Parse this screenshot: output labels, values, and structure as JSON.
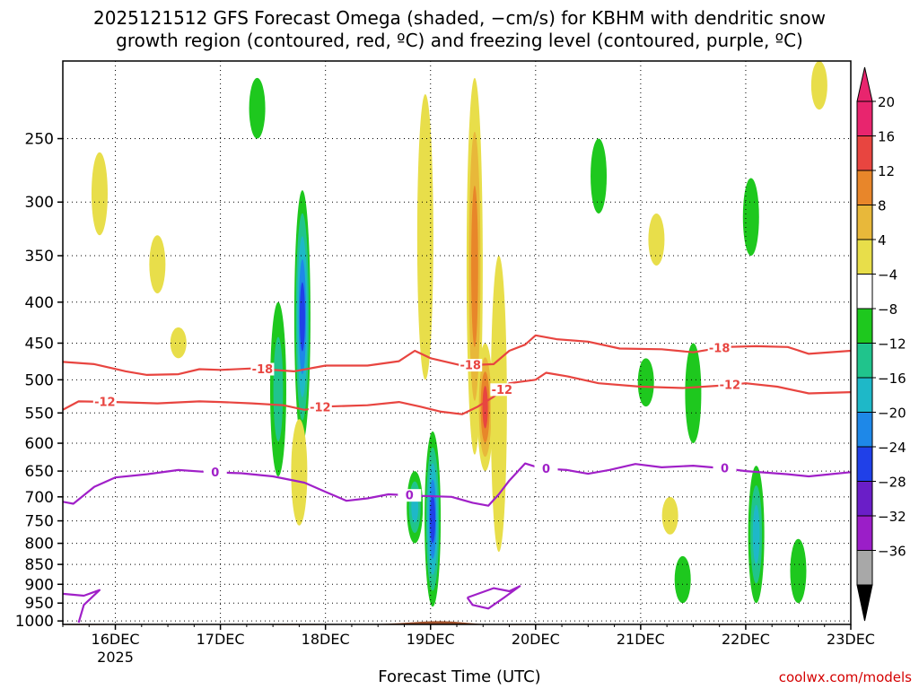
{
  "title_line1": "2025121512 GFS Forecast Omega (shaded, −cm/s) for KBHM with dendritic snow",
  "title_line2": "growth region (contoured, red, ºC) and freezing level (contoured, purple, ºC)",
  "credit": "coolwx.com/models",
  "chart_data": {
    "type": "heatmap",
    "title": "2025121512 GFS Forecast Omega (shaded, −cm/s) for KBHM with dendritic snow growth region (contoured, red, ºC) and freezing level (contoured, purple, ºC)",
    "xlabel": "Forecast Time (UTC)",
    "ylabel": "",
    "x_ticks": [
      {
        "label": "16DEC",
        "sub": "2025",
        "day": 16
      },
      {
        "label": "17DEC",
        "sub": "",
        "day": 17
      },
      {
        "label": "18DEC",
        "sub": "",
        "day": 18
      },
      {
        "label": "19DEC",
        "sub": "",
        "day": 19
      },
      {
        "label": "20DEC",
        "sub": "",
        "day": 20
      },
      {
        "label": "21DEC",
        "sub": "",
        "day": 21
      },
      {
        "label": "22DEC",
        "sub": "",
        "day": 22
      },
      {
        "label": "23DEC",
        "sub": "",
        "day": 23
      }
    ],
    "xlim_days": [
      15.5,
      23.0
    ],
    "y_ticks": [
      "250",
      "300",
      "350",
      "400",
      "450",
      "500",
      "550",
      "600",
      "650",
      "700",
      "750",
      "800",
      "850",
      "900",
      "950",
      "1000"
    ],
    "y_tick_values": [
      250,
      300,
      350,
      400,
      450,
      500,
      550,
      600,
      650,
      700,
      750,
      800,
      850,
      900,
      950,
      1000
    ],
    "ylim_hpa": [
      200,
      1010
    ],
    "y_scale": "log-pressure",
    "grid": true,
    "colorbar": {
      "labels": [
        "20",
        "16",
        "12",
        "8",
        "4",
        "−4",
        "−8",
        "−12",
        "−16",
        "−20",
        "−24",
        "−28",
        "−32",
        "−36"
      ],
      "colors": [
        "#e8256e",
        "#e84540",
        "#e8862a",
        "#e8b83a",
        "#e8de4a",
        "#ffffff",
        "#1ec81e",
        "#20c48c",
        "#1eb8c8",
        "#1e88e8",
        "#2040e8",
        "#6a1ec8",
        "#9b1ec8",
        "#a8a8a8"
      ],
      "top_arrow_color": "#e8256e",
      "bottom_arrow_color": "#000000"
    },
    "omega_features": [
      {
        "day": 17.78,
        "p_top": 290,
        "p_bot": 600,
        "peak": -22
      },
      {
        "day": 17.55,
        "p_top": 400,
        "p_bot": 660,
        "peak": -10
      },
      {
        "day": 19.02,
        "p_top": 580,
        "p_bot": 960,
        "peak": -24
      },
      {
        "day": 18.85,
        "p_top": 650,
        "p_bot": 800,
        "peak": -14
      },
      {
        "day": 19.42,
        "p_top": 210,
        "p_bot": 620,
        "peak": 14
      },
      {
        "day": 19.52,
        "p_top": 450,
        "p_bot": 650,
        "peak": 20
      },
      {
        "day": 19.65,
        "p_top": 350,
        "p_bot": 820,
        "peak": 8
      },
      {
        "day": 21.5,
        "p_top": 450,
        "p_bot": 600,
        "peak": -8
      },
      {
        "day": 21.4,
        "p_top": 830,
        "p_bot": 950,
        "peak": -8
      },
      {
        "day": 22.1,
        "p_top": 640,
        "p_bot": 950,
        "peak": -14
      },
      {
        "day": 22.5,
        "p_top": 790,
        "p_bot": 950,
        "peak": -8
      },
      {
        "day": 21.05,
        "p_top": 470,
        "p_bot": 540,
        "peak": -8
      },
      {
        "day": 22.05,
        "p_top": 280,
        "p_bot": 350,
        "peak": -8
      },
      {
        "day": 20.6,
        "p_top": 250,
        "p_bot": 310,
        "peak": -8
      },
      {
        "day": 17.35,
        "p_top": 210,
        "p_bot": 250,
        "peak": -8
      },
      {
        "day": 18.95,
        "p_top": 220,
        "p_bot": 500,
        "peak": 6
      },
      {
        "day": 17.75,
        "p_top": 560,
        "p_bot": 760,
        "peak": 6
      },
      {
        "day": 21.28,
        "p_top": 700,
        "p_bot": 780,
        "peak": 6
      },
      {
        "day": 15.85,
        "p_top": 260,
        "p_bot": 330,
        "peak": 6
      },
      {
        "day": 16.4,
        "p_top": 330,
        "p_bot": 390,
        "peak": 6
      },
      {
        "day": 21.15,
        "p_top": 310,
        "p_bot": 360,
        "peak": 6
      },
      {
        "day": 22.7,
        "p_top": 200,
        "p_bot": 230,
        "peak": 6
      },
      {
        "day": 16.6,
        "p_top": 430,
        "p_bot": 470,
        "peak": 6
      }
    ],
    "series": [
      {
        "name": "-18",
        "color": "#e84540",
        "points": [
          [
            15.5,
            475
          ],
          [
            15.8,
            478
          ],
          [
            16.1,
            488
          ],
          [
            16.3,
            493
          ],
          [
            16.6,
            492
          ],
          [
            16.8,
            485
          ],
          [
            17.0,
            486
          ],
          [
            17.3,
            484
          ],
          [
            17.7,
            488
          ],
          [
            18.0,
            480
          ],
          [
            18.4,
            480
          ],
          [
            18.7,
            474
          ],
          [
            18.85,
            460
          ],
          [
            19.0,
            470
          ],
          [
            19.3,
            480
          ],
          [
            19.6,
            478
          ],
          [
            19.75,
            460
          ],
          [
            19.9,
            452
          ],
          [
            20.0,
            440
          ],
          [
            20.2,
            445
          ],
          [
            20.5,
            448
          ],
          [
            20.8,
            457
          ],
          [
            21.2,
            458
          ],
          [
            21.5,
            462
          ],
          [
            21.8,
            455
          ],
          [
            22.1,
            454
          ],
          [
            22.4,
            455
          ],
          [
            22.6,
            464
          ],
          [
            23.0,
            460
          ]
        ],
        "labels": [
          {
            "day": 21.75,
            "text": "-18"
          },
          {
            "day": 19.38,
            "text": "-18"
          },
          {
            "day": 17.4,
            "text": "-18"
          }
        ]
      },
      {
        "name": "-12",
        "color": "#e84540",
        "points": [
          [
            15.5,
            545
          ],
          [
            15.65,
            532
          ],
          [
            16.0,
            533
          ],
          [
            16.4,
            535
          ],
          [
            16.8,
            532
          ],
          [
            17.0,
            533
          ],
          [
            17.3,
            535
          ],
          [
            17.6,
            538
          ],
          [
            17.8,
            545
          ],
          [
            18.0,
            540
          ],
          [
            18.4,
            538
          ],
          [
            18.7,
            533
          ],
          [
            18.9,
            540
          ],
          [
            19.1,
            548
          ],
          [
            19.3,
            552
          ],
          [
            19.45,
            540
          ],
          [
            19.6,
            525
          ],
          [
            19.75,
            505
          ],
          [
            20.0,
            500
          ],
          [
            20.1,
            490
          ],
          [
            20.3,
            495
          ],
          [
            20.6,
            505
          ],
          [
            21.0,
            510
          ],
          [
            21.4,
            512
          ],
          [
            21.8,
            508
          ],
          [
            22.0,
            505
          ],
          [
            22.3,
            510
          ],
          [
            22.6,
            520
          ],
          [
            23.0,
            518
          ]
        ],
        "labels": [
          {
            "day": 15.9,
            "text": "-12"
          },
          {
            "day": 17.95,
            "text": "-12"
          },
          {
            "day": 19.68,
            "text": "-12"
          },
          {
            "day": 21.85,
            "text": "-12"
          }
        ]
      },
      {
        "name": "0",
        "color": "#a020c8",
        "points": [
          [
            15.5,
            710
          ],
          [
            15.6,
            714
          ],
          [
            15.8,
            680
          ],
          [
            16.0,
            662
          ],
          [
            16.3,
            656
          ],
          [
            16.6,
            648
          ],
          [
            16.9,
            652
          ],
          [
            17.2,
            654
          ],
          [
            17.5,
            660
          ],
          [
            17.8,
            672
          ],
          [
            18.0,
            690
          ],
          [
            18.2,
            708
          ],
          [
            18.4,
            703
          ],
          [
            18.6,
            695
          ],
          [
            18.9,
            698
          ],
          [
            19.2,
            700
          ],
          [
            19.4,
            712
          ],
          [
            19.55,
            718
          ],
          [
            19.65,
            695
          ],
          [
            19.75,
            668
          ],
          [
            19.9,
            636
          ],
          [
            20.05,
            645
          ],
          [
            20.3,
            648
          ],
          [
            20.5,
            655
          ],
          [
            20.7,
            648
          ],
          [
            20.95,
            637
          ],
          [
            21.2,
            643
          ],
          [
            21.5,
            640
          ],
          [
            21.8,
            645
          ],
          [
            22.0,
            650
          ],
          [
            22.2,
            653
          ],
          [
            22.4,
            656
          ],
          [
            22.6,
            660
          ],
          [
            22.8,
            656
          ],
          [
            23.0,
            652
          ]
        ],
        "labels": [
          {
            "day": 16.95,
            "text": "0"
          },
          {
            "day": 18.8,
            "text": "0"
          },
          {
            "day": 20.1,
            "text": "0"
          },
          {
            "day": 21.8,
            "text": "0"
          }
        ]
      },
      {
        "name": "0 (low-level)",
        "color": "#a020c8",
        "points": [
          [
            15.5,
            925
          ],
          [
            15.7,
            930
          ],
          [
            15.85,
            915
          ],
          [
            15.7,
            955
          ],
          [
            15.65,
            1005
          ]
        ],
        "labels": []
      },
      {
        "name": "0 (low-level 2)",
        "color": "#a020c8",
        "points": [
          [
            19.35,
            935
          ],
          [
            19.6,
            910
          ],
          [
            19.75,
            918
          ],
          [
            19.85,
            905
          ],
          [
            19.7,
            935
          ],
          [
            19.55,
            965
          ],
          [
            19.4,
            955
          ],
          [
            19.35,
            935
          ]
        ],
        "labels": []
      }
    ],
    "terrain_color": "#a0522d"
  }
}
